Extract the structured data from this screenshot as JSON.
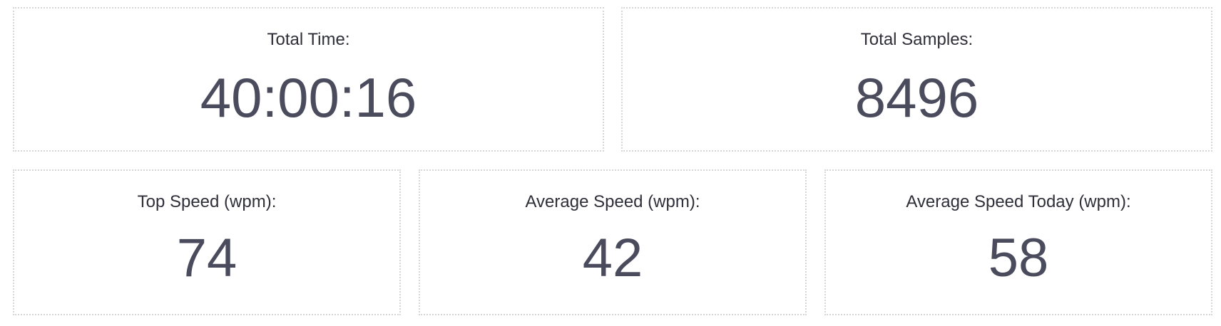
{
  "stats": {
    "total_time": {
      "label": "Total Time:",
      "value": "40:00:16"
    },
    "total_samples": {
      "label": "Total Samples:",
      "value": "8496"
    },
    "top_speed": {
      "label": "Top Speed (wpm):",
      "value": "74"
    },
    "average_speed": {
      "label": "Average Speed (wpm):",
      "value": "42"
    },
    "average_speed_today": {
      "label": "Average Speed Today (wpm):",
      "value": "58"
    }
  },
  "colors": {
    "text": "#2f2f3a",
    "value": "#4a4b5c",
    "card_border": "#d6d6d6",
    "background": "#ffffff"
  }
}
